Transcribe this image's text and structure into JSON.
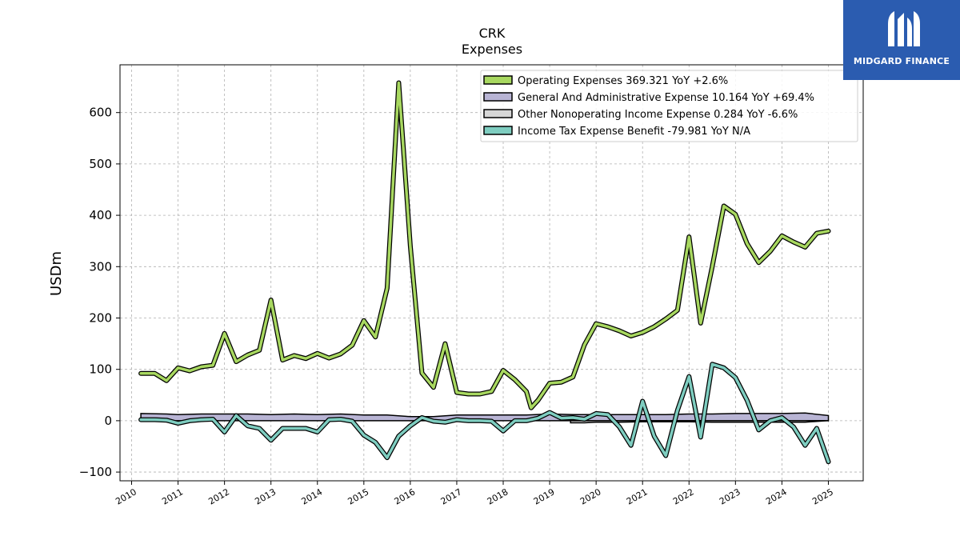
{
  "header": {
    "ticker": "CRK",
    "subtitle": "Expenses"
  },
  "logo": {
    "brand": "MIDGARD FINANCE",
    "color": "#2b5cb0"
  },
  "chart_data": {
    "type": "line",
    "title": "CRK",
    "subtitle": "Expenses",
    "ylabel": "USDm",
    "xlabel": "",
    "xlim": [
      2009.75,
      2025.75
    ],
    "ylim": [
      -117,
      693
    ],
    "xticks": [
      2010,
      2011,
      2012,
      2013,
      2014,
      2015,
      2016,
      2017,
      2018,
      2019,
      2020,
      2021,
      2022,
      2023,
      2024,
      2025
    ],
    "yticks": [
      -100,
      0,
      100,
      200,
      300,
      400,
      500,
      600
    ],
    "ytick_labels": [
      "−100",
      "0",
      "100",
      "200",
      "300",
      "400",
      "500",
      "600"
    ],
    "grid": true,
    "legend_position": "top-right",
    "series": [
      {
        "name": "Operating Expenses  369.321 YoY +2.6%",
        "color": "#a8d860",
        "points": [
          [
            2010.2,
            92
          ],
          [
            2010.5,
            92
          ],
          [
            2010.75,
            78
          ],
          [
            2011.0,
            103
          ],
          [
            2011.25,
            97
          ],
          [
            2011.5,
            105
          ],
          [
            2011.75,
            108
          ],
          [
            2012.0,
            170
          ],
          [
            2012.25,
            115
          ],
          [
            2012.5,
            128
          ],
          [
            2012.75,
            137
          ],
          [
            2013.0,
            235
          ],
          [
            2013.25,
            118
          ],
          [
            2013.5,
            127
          ],
          [
            2013.75,
            121
          ],
          [
            2014.0,
            131
          ],
          [
            2014.25,
            122
          ],
          [
            2014.5,
            130
          ],
          [
            2014.75,
            147
          ],
          [
            2015.0,
            195
          ],
          [
            2015.25,
            163
          ],
          [
            2015.5,
            258
          ],
          [
            2015.75,
            658
          ],
          [
            2016.0,
            340
          ],
          [
            2016.25,
            93
          ],
          [
            2016.5,
            65
          ],
          [
            2016.75,
            150
          ],
          [
            2017.0,
            55
          ],
          [
            2017.25,
            52
          ],
          [
            2017.5,
            52
          ],
          [
            2017.75,
            57
          ],
          [
            2018.0,
            98
          ],
          [
            2018.25,
            80
          ],
          [
            2018.5,
            57
          ],
          [
            2018.6,
            25
          ],
          [
            2018.75,
            40
          ],
          [
            2019.0,
            73
          ],
          [
            2019.25,
            75
          ],
          [
            2019.5,
            85
          ],
          [
            2019.75,
            148
          ],
          [
            2020.0,
            189
          ],
          [
            2020.25,
            183
          ],
          [
            2020.5,
            175
          ],
          [
            2020.75,
            165
          ],
          [
            2021.0,
            172
          ],
          [
            2021.25,
            183
          ],
          [
            2021.5,
            198
          ],
          [
            2021.75,
            215
          ],
          [
            2022.0,
            358
          ],
          [
            2022.25,
            190
          ],
          [
            2022.5,
            300
          ],
          [
            2022.75,
            418
          ],
          [
            2023.0,
            402
          ],
          [
            2023.25,
            345
          ],
          [
            2023.5,
            308
          ],
          [
            2023.75,
            330
          ],
          [
            2024.0,
            360
          ],
          [
            2024.25,
            348
          ],
          [
            2024.5,
            338
          ],
          [
            2024.75,
            365
          ],
          [
            2025.0,
            369.321
          ]
        ]
      },
      {
        "name": "General And Administrative Expense  10.164 YoY +69.4%",
        "color": "#b8b4d4",
        "points": [
          [
            2010.2,
            14
          ],
          [
            2010.75,
            13
          ],
          [
            2011.0,
            12
          ],
          [
            2011.5,
            13
          ],
          [
            2012.0,
            13
          ],
          [
            2012.5,
            13
          ],
          [
            2013.0,
            12
          ],
          [
            2013.5,
            13
          ],
          [
            2014.0,
            12
          ],
          [
            2014.5,
            13
          ],
          [
            2015.0,
            11
          ],
          [
            2015.5,
            11
          ],
          [
            2016.0,
            8
          ],
          [
            2016.5,
            8
          ],
          [
            2017.0,
            11
          ],
          [
            2017.5,
            11
          ],
          [
            2018.0,
            11
          ],
          [
            2018.5,
            11
          ],
          [
            2019.0,
            13
          ],
          [
            2019.5,
            12
          ],
          [
            2020.0,
            12
          ],
          [
            2020.5,
            12
          ],
          [
            2021.0,
            12
          ],
          [
            2021.5,
            12
          ],
          [
            2022.0,
            13
          ],
          [
            2022.5,
            13
          ],
          [
            2023.0,
            14
          ],
          [
            2023.5,
            14
          ],
          [
            2024.0,
            14
          ],
          [
            2024.5,
            15
          ],
          [
            2025.0,
            10.164
          ]
        ]
      },
      {
        "name": "Other Nonoperating Income Expense  0.284 YoY -6.6%",
        "color": "#d6d6d6",
        "points": [
          [
            2019.45,
            -4
          ],
          [
            2019.75,
            -4
          ],
          [
            2020.0,
            -3
          ],
          [
            2020.5,
            -3
          ],
          [
            2021.0,
            -2
          ],
          [
            2021.5,
            -2
          ],
          [
            2022.0,
            -2
          ],
          [
            2022.5,
            -3
          ],
          [
            2023.0,
            -3
          ],
          [
            2023.5,
            -3
          ],
          [
            2024.0,
            -3
          ],
          [
            2024.5,
            -3
          ],
          [
            2025.0,
            0.284
          ]
        ]
      },
      {
        "name": "Income Tax Expense Benefit  -79.981 YoY N/A",
        "color": "#7ecdc0",
        "points": [
          [
            2010.2,
            2
          ],
          [
            2010.5,
            2
          ],
          [
            2010.75,
            1
          ],
          [
            2011.0,
            -5
          ],
          [
            2011.25,
            0
          ],
          [
            2011.5,
            2
          ],
          [
            2011.75,
            3
          ],
          [
            2012.0,
            -22
          ],
          [
            2012.25,
            10
          ],
          [
            2012.5,
            -10
          ],
          [
            2012.75,
            -15
          ],
          [
            2013.0,
            -38
          ],
          [
            2013.25,
            -15
          ],
          [
            2013.5,
            -15
          ],
          [
            2013.75,
            -15
          ],
          [
            2014.0,
            -22
          ],
          [
            2014.25,
            2
          ],
          [
            2014.5,
            3
          ],
          [
            2014.75,
            -1
          ],
          [
            2015.0,
            -28
          ],
          [
            2015.25,
            -42
          ],
          [
            2015.5,
            -72
          ],
          [
            2015.75,
            -30
          ],
          [
            2016.0,
            -10
          ],
          [
            2016.25,
            6
          ],
          [
            2016.5,
            -1
          ],
          [
            2016.75,
            -3
          ],
          [
            2017.0,
            2
          ],
          [
            2017.25,
            0
          ],
          [
            2017.5,
            0
          ],
          [
            2017.75,
            -1
          ],
          [
            2018.0,
            -20
          ],
          [
            2018.25,
            0
          ],
          [
            2018.5,
            0
          ],
          [
            2018.75,
            5
          ],
          [
            2019.0,
            16
          ],
          [
            2019.25,
            5
          ],
          [
            2019.5,
            6
          ],
          [
            2019.75,
            3
          ],
          [
            2020.0,
            14
          ],
          [
            2020.25,
            12
          ],
          [
            2020.5,
            -12
          ],
          [
            2020.75,
            -48
          ],
          [
            2021.0,
            38
          ],
          [
            2021.25,
            -30
          ],
          [
            2021.5,
            -68
          ],
          [
            2021.75,
            20
          ],
          [
            2022.0,
            86
          ],
          [
            2022.25,
            -32
          ],
          [
            2022.5,
            110
          ],
          [
            2022.75,
            103
          ],
          [
            2023.0,
            84
          ],
          [
            2023.25,
            40
          ],
          [
            2023.5,
            -18
          ],
          [
            2023.75,
            0
          ],
          [
            2024.0,
            6
          ],
          [
            2024.25,
            -12
          ],
          [
            2024.5,
            -48
          ],
          [
            2024.75,
            -15
          ],
          [
            2025.0,
            -79.981
          ]
        ]
      }
    ]
  }
}
